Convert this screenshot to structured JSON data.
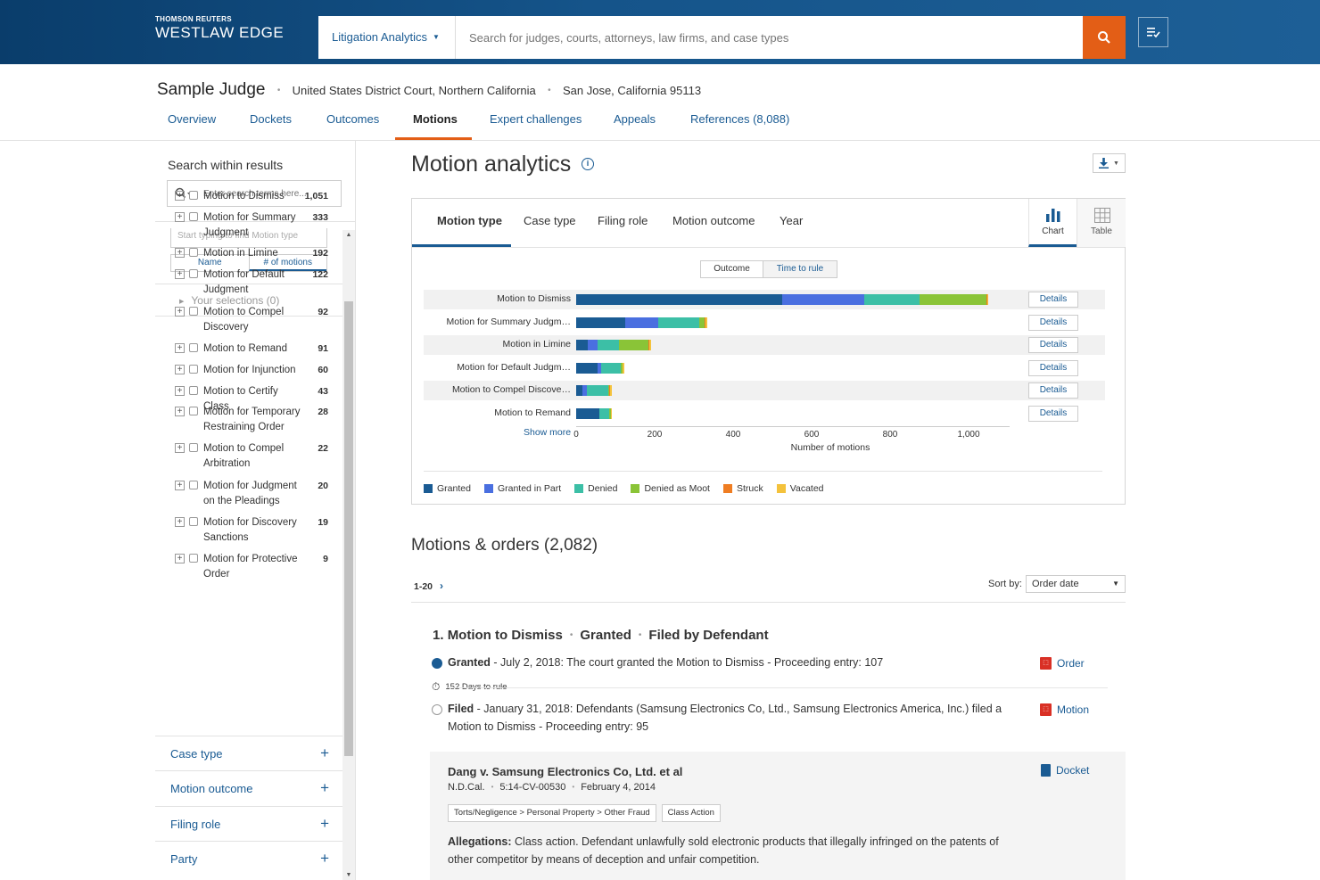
{
  "header": {
    "brand_small": "THOMSON REUTERS",
    "brand_big": "WESTLAW EDGE",
    "search_scope": "Litigation Analytics",
    "search_placeholder": "Search for judges, courts, attorneys, law firms, and case types"
  },
  "judge": {
    "name": "Sample Judge",
    "court": "United States District Court, Northern California",
    "location": "San Jose, California 95113"
  },
  "tabs": [
    {
      "label": "Overview"
    },
    {
      "label": "Dockets"
    },
    {
      "label": "Outcomes"
    },
    {
      "label": "Motions"
    },
    {
      "label": "Expert challenges"
    },
    {
      "label": "Appeals"
    },
    {
      "label": "References (8,088)"
    }
  ],
  "sidebar": {
    "title": "Search within results",
    "search_placeholder": "Enter search terms here...",
    "type_placeholder": "Start typing to find Motion type",
    "toggle_name": "Name",
    "toggle_count": "# of motions",
    "selections": "Your selections (0)",
    "motion_types": [
      {
        "label": "Motion to Dismiss",
        "count": "1,051"
      },
      {
        "label": "Motion for Summary Judgment",
        "count": "333"
      },
      {
        "label": "Motion in Limine",
        "count": "192"
      },
      {
        "label": "Motion for Default Judgment",
        "count": "122"
      },
      {
        "label": "Motion to Compel Discovery",
        "count": "92"
      },
      {
        "label": "Motion to Remand",
        "count": "91"
      },
      {
        "label": "Motion for Injunction",
        "count": "60"
      },
      {
        "label": "Motion to Certify Class",
        "count": "43"
      },
      {
        "label": "Motion for Temporary Restraining Order",
        "count": "28"
      },
      {
        "label": "Motion to Compel Arbitration",
        "count": "22"
      },
      {
        "label": "Motion for Judgment on the Pleadings",
        "count": "20"
      },
      {
        "label": "Motion for Discovery Sanctions",
        "count": "19"
      },
      {
        "label": "Motion for Protective Order",
        "count": "9"
      }
    ],
    "facets": [
      {
        "label": "Case type"
      },
      {
        "label": "Motion outcome"
      },
      {
        "label": "Filing role"
      },
      {
        "label": "Party"
      }
    ]
  },
  "main": {
    "title": "Motion analytics",
    "chart_tabs": [
      {
        "label": "Motion type"
      },
      {
        "label": "Case type"
      },
      {
        "label": "Filing role"
      },
      {
        "label": "Motion outcome"
      },
      {
        "label": "Year"
      }
    ],
    "view_chart": "Chart",
    "view_table": "Table",
    "seg_outcome": "Outcome",
    "seg_time": "Time to rule",
    "details_label": "Details",
    "show_more": "Show more",
    "motions_title": "Motions & orders (2,082)",
    "pager": "1-20",
    "sort_label": "Sort by:",
    "sort_value": "Order date"
  },
  "chart_data": {
    "type": "bar",
    "orientation": "horizontal",
    "stacked": true,
    "categories": [
      "Motion to Dismiss",
      "Motion for Summary Judgm…",
      "Motion in Limine",
      "Motion for Default Judgm…",
      "Motion to Compel Discove…",
      "Motion to Remand"
    ],
    "series": [
      {
        "name": "Granted",
        "color": "#1a5b93",
        "values": [
          525,
          125,
          30,
          55,
          15,
          58
        ]
      },
      {
        "name": "Granted in Part",
        "color": "#4a6fe0",
        "values": [
          210,
          85,
          25,
          8,
          12,
          0
        ]
      },
      {
        "name": "Denied",
        "color": "#3cbfa6",
        "values": [
          140,
          103,
          55,
          50,
          55,
          25
        ]
      },
      {
        "name": "Denied as Moot",
        "color": "#8ac437",
        "values": [
          170,
          15,
          73,
          5,
          3,
          5
        ]
      },
      {
        "name": "Struck",
        "color": "#ef7d22",
        "values": [
          3,
          2,
          4,
          1,
          2,
          1
        ]
      },
      {
        "name": "Vacated",
        "color": "#f4c23c",
        "values": [
          3,
          3,
          5,
          3,
          5,
          2
        ]
      }
    ],
    "xlabel": "Number of motions",
    "ylabel": "",
    "xlim": [
      0,
      1100
    ],
    "xticks": [
      "0",
      "200",
      "400",
      "600",
      "800",
      "1,000"
    ],
    "legend_position": "bottom-left"
  },
  "result": {
    "title_index": "1.",
    "title_motion": "Motion to Dismiss",
    "title_outcome": "Granted",
    "title_role": "Filed by Defendant",
    "ev1_bold": "Granted",
    "ev1_text": " - July 2, 2018: The court granted the Motion to Dismiss - Proceeding entry: 107",
    "days": "152 Days to rule",
    "ev2_bold": "Filed",
    "ev2_text": " - January 31, 2018: Defendants (Samsung Electronics Co, Ltd., Samsung Electronics America, Inc.) filed a Motion to Dismiss - Proceeding entry: 95",
    "link_order": "Order",
    "link_motion": "Motion",
    "link_docket": "Docket",
    "case_title": "Dang v. Samsung Electronics Co, Ltd. et al",
    "case_court": "N.D.Cal.",
    "case_number": "5:14-CV-00530",
    "case_date": "February 4, 2014",
    "tag1": "Torts/Negligence > Personal Property > Other Fraud",
    "tag2": "Class Action",
    "alleg_label": "Allegations:",
    "alleg_text": " Class action. Defendant unlawfully sold electronic products that illegally infringed on the patents of other competitor by means of deception and unfair competition."
  }
}
